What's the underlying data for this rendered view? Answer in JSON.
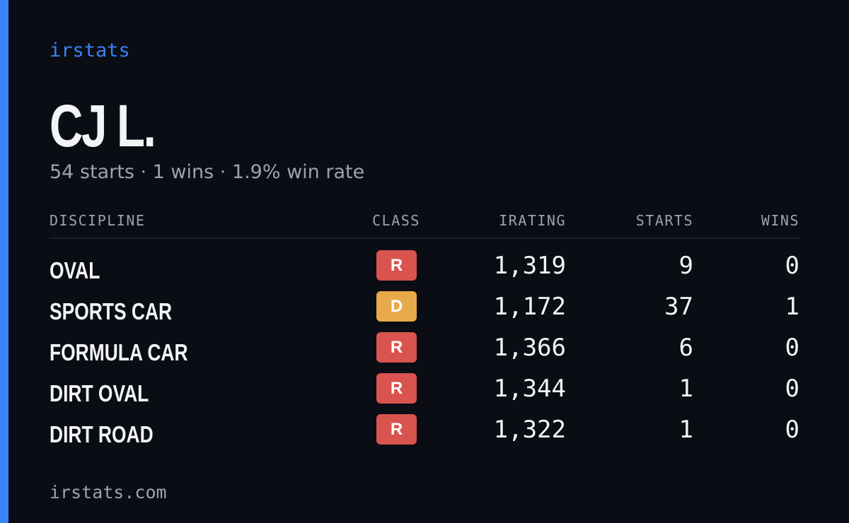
{
  "brand": "irstats",
  "profile": {
    "name": "CJ L.",
    "summary": "54 starts · 1 wins · 1.9% win rate"
  },
  "table": {
    "headers": [
      "DISCIPLINE",
      "CLASS",
      "IRATING",
      "STARTS",
      "WINS"
    ],
    "rows": [
      {
        "discipline": "OVAL",
        "class": "R",
        "class_color": "#d9534f",
        "irating": "1,319",
        "starts": 9,
        "wins": 0
      },
      {
        "discipline": "SPORTS CAR",
        "class": "D",
        "class_color": "#e8a94a",
        "irating": "1,172",
        "starts": 37,
        "wins": 1
      },
      {
        "discipline": "FORMULA CAR",
        "class": "R",
        "class_color": "#d9534f",
        "irating": "1,366",
        "starts": 6,
        "wins": 0
      },
      {
        "discipline": "DIRT OVAL",
        "class": "R",
        "class_color": "#d9534f",
        "irating": "1,344",
        "starts": 1,
        "wins": 0
      },
      {
        "discipline": "DIRT ROAD",
        "class": "R",
        "class_color": "#d9534f",
        "irating": "1,322",
        "starts": 1,
        "wins": 0
      }
    ]
  },
  "footer": "irstats.com"
}
